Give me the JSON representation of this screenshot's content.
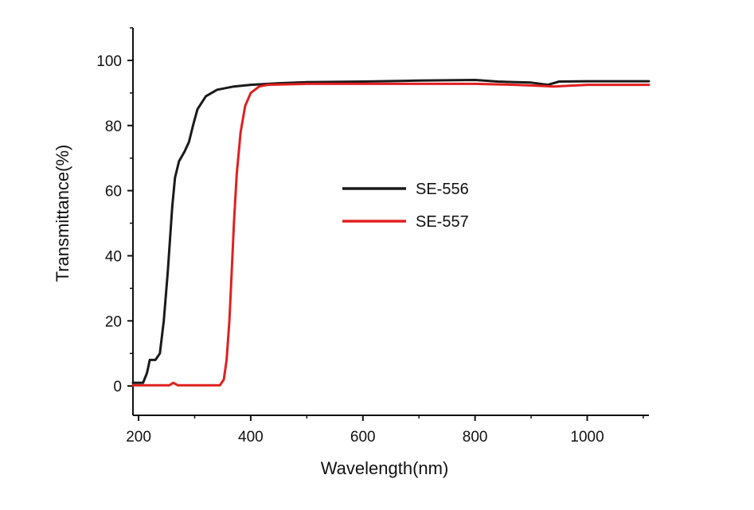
{
  "chart_data": {
    "type": "line",
    "xlabel": "Wavelength(nm)",
    "ylabel": "Transmittance(%)",
    "xlim": [
      190,
      1110
    ],
    "ylim": [
      -9,
      110
    ],
    "xticks": [
      200,
      400,
      600,
      800,
      1000
    ],
    "yticks": [
      0,
      20,
      40,
      60,
      80,
      100
    ],
    "grid": false,
    "legend_position": "center-right",
    "series": [
      {
        "name": "SE-556",
        "color": "#1a1a1a",
        "points": [
          [
            190,
            1
          ],
          [
            208,
            1
          ],
          [
            215,
            4
          ],
          [
            220,
            8
          ],
          [
            230,
            8
          ],
          [
            238,
            10
          ],
          [
            245,
            20
          ],
          [
            252,
            35
          ],
          [
            256,
            45
          ],
          [
            260,
            55
          ],
          [
            265,
            64
          ],
          [
            272,
            69
          ],
          [
            282,
            72
          ],
          [
            290,
            75
          ],
          [
            297,
            80
          ],
          [
            305,
            85
          ],
          [
            320,
            89
          ],
          [
            340,
            91
          ],
          [
            370,
            92
          ],
          [
            400,
            92.5
          ],
          [
            450,
            93
          ],
          [
            500,
            93.3
          ],
          [
            600,
            93.5
          ],
          [
            700,
            93.8
          ],
          [
            800,
            94
          ],
          [
            840,
            93.5
          ],
          [
            900,
            93.2
          ],
          [
            930,
            92.5
          ],
          [
            950,
            93.5
          ],
          [
            1000,
            93.6
          ],
          [
            1110,
            93.6
          ]
        ]
      },
      {
        "name": "SE-557",
        "color": "#e02020",
        "points": [
          [
            190,
            0.2
          ],
          [
            255,
            0.2
          ],
          [
            262,
            1
          ],
          [
            270,
            0.2
          ],
          [
            345,
            0.2
          ],
          [
            352,
            2
          ],
          [
            357,
            8
          ],
          [
            362,
            20
          ],
          [
            366,
            35
          ],
          [
            370,
            50
          ],
          [
            375,
            65
          ],
          [
            382,
            78
          ],
          [
            390,
            86
          ],
          [
            400,
            90
          ],
          [
            415,
            92
          ],
          [
            430,
            92.5
          ],
          [
            500,
            92.8
          ],
          [
            600,
            92.8
          ],
          [
            700,
            92.8
          ],
          [
            800,
            92.8
          ],
          [
            850,
            92.6
          ],
          [
            900,
            92.3
          ],
          [
            940,
            92
          ],
          [
            1000,
            92.5
          ],
          [
            1110,
            92.5
          ]
        ]
      }
    ]
  }
}
